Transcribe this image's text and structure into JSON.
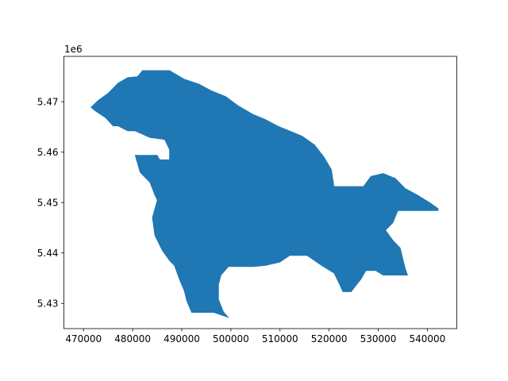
{
  "chart_data": {
    "type": "area",
    "title": "",
    "xlabel": "",
    "ylabel": "",
    "xlim": [
      466000,
      546000
    ],
    "ylim": [
      5425000,
      5479000
    ],
    "offset_label": "1e6",
    "x_ticks": [
      {
        "value": 470000,
        "label": "470000"
      },
      {
        "value": 480000,
        "label": "480000"
      },
      {
        "value": 490000,
        "label": "490000"
      },
      {
        "value": 500000,
        "label": "500000"
      },
      {
        "value": 510000,
        "label": "510000"
      },
      {
        "value": 520000,
        "label": "520000"
      },
      {
        "value": 530000,
        "label": "530000"
      },
      {
        "value": 540000,
        "label": "540000"
      }
    ],
    "y_ticks": [
      {
        "value": 5430000,
        "label": "5.43"
      },
      {
        "value": 5440000,
        "label": "5.44"
      },
      {
        "value": 5450000,
        "label": "5.45"
      },
      {
        "value": 5460000,
        "label": "5.46"
      },
      {
        "value": 5470000,
        "label": "5.47"
      }
    ],
    "grid": false,
    "fill_color": "#1f77b4",
    "series": [
      {
        "outline": [
          [
            482000,
            5476200
          ],
          [
            487500,
            5476200
          ],
          [
            490500,
            5474500
          ],
          [
            493500,
            5473500
          ],
          [
            496000,
            5472200
          ],
          [
            499000,
            5471000
          ],
          [
            501500,
            5469200
          ],
          [
            504500,
            5467500
          ],
          [
            507000,
            5466500
          ],
          [
            509500,
            5465200
          ],
          [
            512000,
            5464200
          ],
          [
            514500,
            5463200
          ],
          [
            517000,
            5461500
          ],
          [
            519000,
            5459000
          ],
          [
            520500,
            5456500
          ],
          [
            521000,
            5453200
          ],
          [
            527000,
            5453200
          ],
          [
            528500,
            5455200
          ],
          [
            531000,
            5455800
          ],
          [
            533500,
            5454800
          ],
          [
            535500,
            5452800
          ],
          [
            538000,
            5451500
          ],
          [
            540500,
            5450000
          ],
          [
            542200,
            5448800
          ],
          [
            542200,
            5448400
          ],
          [
            534000,
            5448400
          ],
          [
            533000,
            5446000
          ],
          [
            531500,
            5444500
          ],
          [
            533000,
            5442500
          ],
          [
            534500,
            5441000
          ],
          [
            535000,
            5439000
          ],
          [
            535500,
            5437000
          ],
          [
            536000,
            5435600
          ],
          [
            531000,
            5435600
          ],
          [
            529500,
            5436500
          ],
          [
            527500,
            5436500
          ],
          [
            526500,
            5434800
          ],
          [
            525500,
            5433600
          ],
          [
            524500,
            5432300
          ],
          [
            522800,
            5432300
          ],
          [
            522000,
            5434000
          ],
          [
            521000,
            5436000
          ],
          [
            518500,
            5437500
          ],
          [
            515500,
            5439500
          ],
          [
            512000,
            5439500
          ],
          [
            510000,
            5438200
          ],
          [
            507000,
            5437500
          ],
          [
            504500,
            5437300
          ],
          [
            501500,
            5437300
          ],
          [
            499500,
            5437300
          ],
          [
            498000,
            5435600
          ],
          [
            497500,
            5433800
          ],
          [
            497500,
            5430800
          ],
          [
            498500,
            5428300
          ],
          [
            499500,
            5427200
          ],
          [
            496500,
            5428200
          ],
          [
            495000,
            5428200
          ],
          [
            492000,
            5428200
          ],
          [
            491000,
            5430500
          ],
          [
            490500,
            5432500
          ],
          [
            489500,
            5434800
          ],
          [
            488500,
            5437500
          ],
          [
            487500,
            5438500
          ],
          [
            486000,
            5440500
          ],
          [
            484500,
            5443500
          ],
          [
            484000,
            5447000
          ],
          [
            485000,
            5450500
          ],
          [
            484500,
            5451500
          ],
          [
            483500,
            5454000
          ],
          [
            481500,
            5456000
          ],
          [
            480500,
            5459400
          ],
          [
            485000,
            5459400
          ],
          [
            485500,
            5458500
          ],
          [
            487500,
            5458500
          ],
          [
            487500,
            5460500
          ],
          [
            486500,
            5462500
          ],
          [
            483500,
            5462900
          ],
          [
            480500,
            5464200
          ],
          [
            479000,
            5464200
          ],
          [
            477000,
            5465200
          ],
          [
            476000,
            5465200
          ],
          [
            474500,
            5466800
          ],
          [
            472500,
            5468100
          ],
          [
            471500,
            5468900
          ],
          [
            473000,
            5470300
          ],
          [
            475000,
            5471700
          ],
          [
            477000,
            5473700
          ],
          [
            479000,
            5474800
          ],
          [
            481000,
            5475000
          ]
        ]
      }
    ]
  }
}
